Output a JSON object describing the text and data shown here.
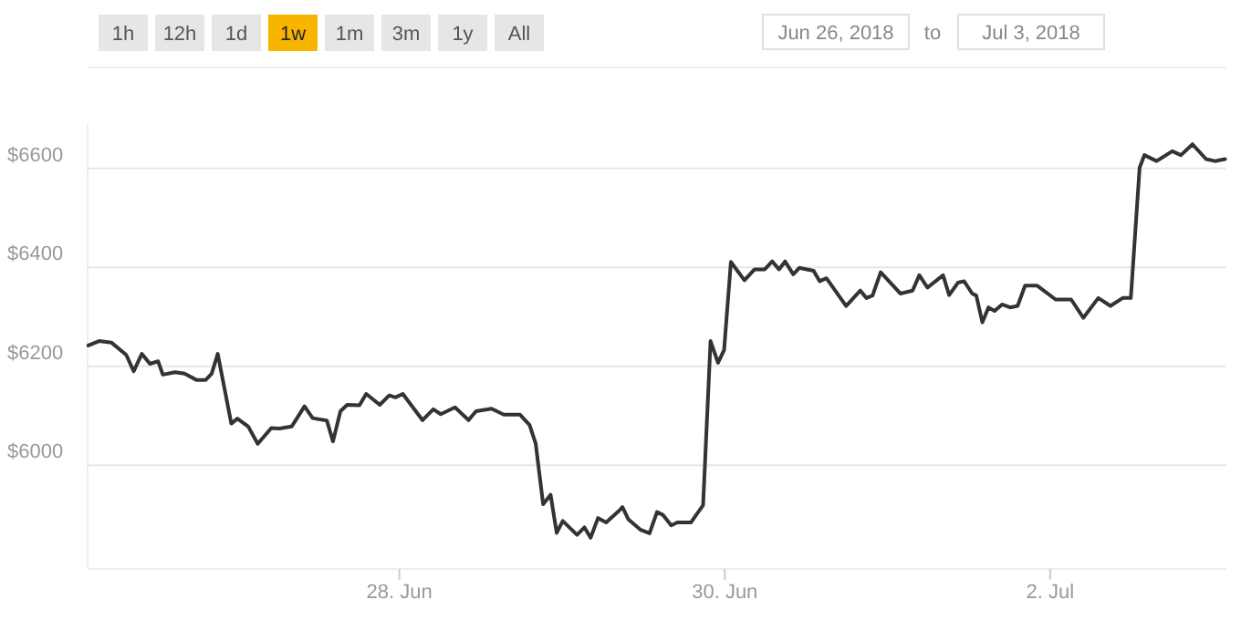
{
  "chart_data": {
    "type": "line",
    "grid": "y",
    "marker": "none",
    "line_style": "solid",
    "annotations": [
      "1h",
      "12h",
      "1d",
      "1w",
      "1m",
      "3m",
      "1y",
      "All",
      "Jun 26, 2018",
      "to",
      "Jul 3, 2018"
    ],
    "xlim": [
      "2018-06-26T02:00",
      "2018-07-03T02:00"
    ],
    "xticks": [
      {
        "value": "2018-06-28",
        "label": "28. Jun"
      },
      {
        "value": "2018-06-30",
        "label": "30. Jun"
      },
      {
        "value": "2018-07-02",
        "label": "2. Jul"
      }
    ],
    "ylim": [
      5790,
      6690
    ],
    "yticks": [
      {
        "value": 6000,
        "label": "$6000"
      },
      {
        "value": 6200,
        "label": "$6200"
      },
      {
        "value": 6400,
        "label": "$6400"
      },
      {
        "value": 6600,
        "label": "$6600"
      }
    ],
    "x": [
      "2018-06-26T02:06",
      "2018-06-26T03:42",
      "2018-06-26T05:30",
      "2018-06-26T07:42",
      "2018-06-26T08:48",
      "2018-06-26T10:00",
      "2018-06-26T11:12",
      "2018-06-26T12:24",
      "2018-06-26T13:06",
      "2018-06-26T14:54",
      "2018-06-26T16:18",
      "2018-06-26T18:06",
      "2018-06-26T19:24",
      "2018-06-26T20:18",
      "2018-06-26T21:12",
      "2018-06-26T23:12",
      "2018-06-27T00:06",
      "2018-06-27T01:42",
      "2018-06-27T03:06",
      "2018-06-27T05:06",
      "2018-06-27T06:18",
      "2018-06-27T08:06",
      "2018-06-27T10:00",
      "2018-06-27T11:12",
      "2018-06-27T13:18",
      "2018-06-27T14:12",
      "2018-06-27T15:18",
      "2018-06-27T16:18",
      "2018-06-27T18:06",
      "2018-06-27T19:06",
      "2018-06-27T21:06",
      "2018-06-27T22:30",
      "2018-06-27T23:24",
      "2018-06-28T00:30",
      "2018-06-28T03:24",
      "2018-06-28T05:00",
      "2018-06-28T06:06",
      "2018-06-28T08:12",
      "2018-06-28T10:12",
      "2018-06-28T11:18",
      "2018-06-28T13:36",
      "2018-06-28T15:24",
      "2018-06-28T17:48",
      "2018-06-28T19:12",
      "2018-06-28T20:06",
      "2018-06-28T21:12",
      "2018-06-28T22:18",
      "2018-06-28T23:12",
      "2018-06-29T00:06",
      "2018-06-29T02:12",
      "2018-06-29T03:18",
      "2018-06-29T04:12",
      "2018-06-29T05:18",
      "2018-06-29T06:30",
      "2018-06-29T08:30",
      "2018-06-29T08:54",
      "2018-06-29T09:48",
      "2018-06-29T11:36",
      "2018-06-29T12:54",
      "2018-06-29T14:00",
      "2018-06-29T14:54",
      "2018-06-29T16:06",
      "2018-06-29T17:00",
      "2018-06-29T19:00",
      "2018-06-29T20:48",
      "2018-06-29T21:54",
      "2018-06-29T23:00",
      "2018-06-29T23:54",
      "2018-06-30T00:54",
      "2018-06-30T02:54",
      "2018-06-30T04:24",
      "2018-06-30T05:54",
      "2018-06-30T07:00",
      "2018-06-30T08:00",
      "2018-06-30T08:54",
      "2018-06-30T10:06",
      "2018-06-30T11:00",
      "2018-06-30T13:06",
      "2018-06-30T14:00",
      "2018-06-30T15:00",
      "2018-06-30T17:54",
      "2018-06-30T20:00",
      "2018-06-30T20:54",
      "2018-06-30T21:48",
      "2018-06-30T23:00",
      "2018-07-01T01:54",
      "2018-07-01T03:42",
      "2018-07-01T04:42",
      "2018-07-01T05:54",
      "2018-07-01T08:12",
      "2018-07-01T09:06",
      "2018-07-01T10:24",
      "2018-07-01T11:18",
      "2018-07-01T12:30",
      "2018-07-01T13:06",
      "2018-07-01T14:00",
      "2018-07-01T14:54",
      "2018-07-01T15:48",
      "2018-07-01T16:54",
      "2018-07-01T18:06",
      "2018-07-01T19:12",
      "2018-07-01T20:18",
      "2018-07-01T22:06",
      "2018-07-02T00:48",
      "2018-07-02T03:06",
      "2018-07-02T04:54",
      "2018-07-02T07:06",
      "2018-07-02T08:54",
      "2018-07-02T10:42",
      "2018-07-02T11:54",
      "2018-07-02T13:12",
      "2018-07-02T13:54",
      "2018-07-02T15:42",
      "2018-07-02T18:00",
      "2018-07-02T19:18",
      "2018-07-02T21:00",
      "2018-07-02T23:00",
      "2018-07-03T00:18",
      "2018-07-03T01:48"
    ],
    "series": [
      {
        "color": "#333333",
        "values": [
          6242,
          6251,
          6248,
          6223,
          6190,
          6225,
          6205,
          6210,
          6183,
          6188,
          6185,
          6172,
          6172,
          6185,
          6225,
          6084,
          6094,
          6078,
          6043,
          6075,
          6074,
          6078,
          6119,
          6095,
          6090,
          6048,
          6109,
          6122,
          6121,
          6144,
          6122,
          6141,
          6137,
          6144,
          6091,
          6113,
          6103,
          6117,
          6091,
          6109,
          6114,
          6102,
          6102,
          6081,
          6044,
          5921,
          5940,
          5863,
          5887,
          5859,
          5874,
          5853,
          5893,
          5884,
          5909,
          5915,
          5890,
          5869,
          5862,
          5905,
          5899,
          5878,
          5884,
          5884,
          5919,
          6251,
          6207,
          6233,
          6411,
          6374,
          6396,
          6396,
          6412,
          6396,
          6412,
          6386,
          6399,
          6393,
          6372,
          6378,
          6322,
          6353,
          6338,
          6343,
          6390,
          6347,
          6353,
          6384,
          6359,
          6384,
          6344,
          6369,
          6372,
          6347,
          6343,
          6289,
          6319,
          6312,
          6325,
          6319,
          6322,
          6363,
          6363,
          6335,
          6335,
          6298,
          6338,
          6322,
          6338,
          6338,
          6602,
          6627,
          6615,
          6635,
          6627,
          6649,
          6619,
          6615,
          6619
        ]
      }
    ]
  }
}
